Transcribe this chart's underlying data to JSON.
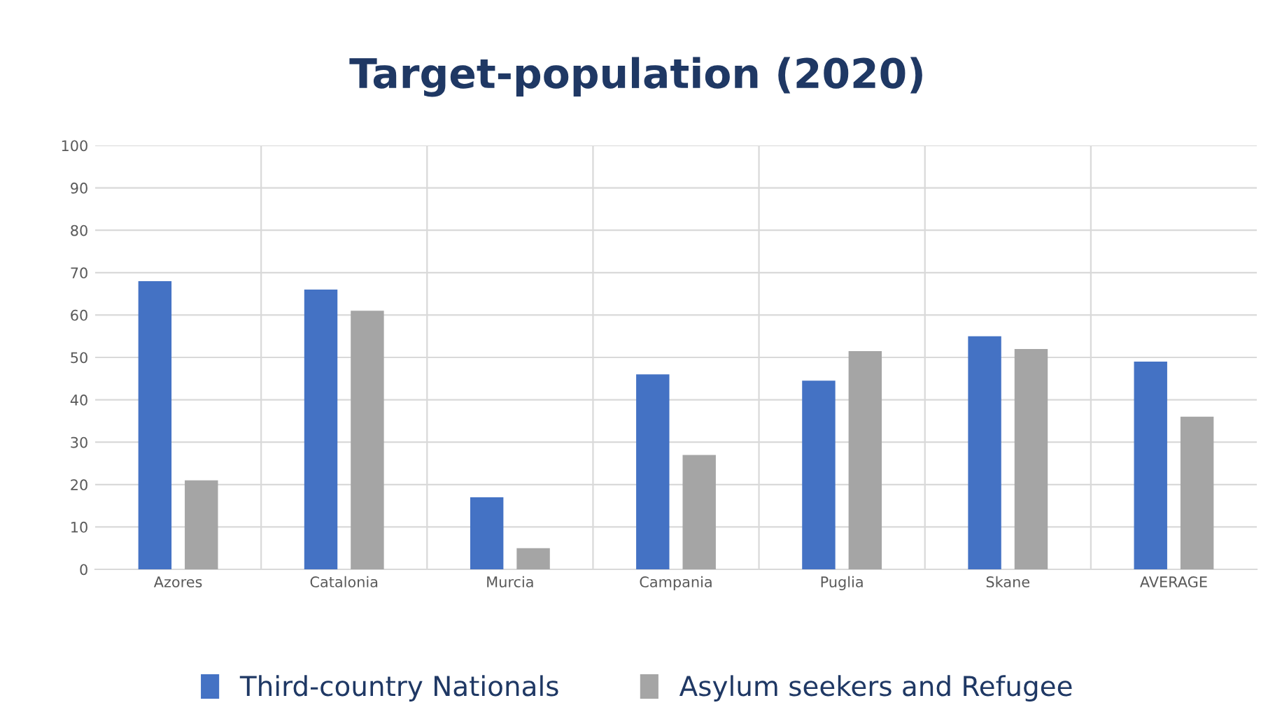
{
  "chart_data": {
    "type": "bar",
    "title": "Target-population (2020)",
    "categories": [
      "Azores",
      "Catalonia",
      "Murcia",
      "Campania",
      "Puglia",
      "Skane",
      "AVERAGE"
    ],
    "series": [
      {
        "name": "Third-country Nationals",
        "color": "#4472c4",
        "values": [
          68,
          66,
          17,
          46,
          44.5,
          55,
          49
        ]
      },
      {
        "name": "Asylum seekers and Refugee",
        "color": "#a5a5a5",
        "values": [
          21,
          61,
          5,
          27,
          51.5,
          52,
          36
        ]
      }
    ],
    "ylim": [
      0,
      100
    ],
    "yticks": [
      0,
      10,
      20,
      30,
      40,
      50,
      60,
      70,
      80,
      90,
      100
    ],
    "grid": true,
    "legend": "bottom"
  }
}
